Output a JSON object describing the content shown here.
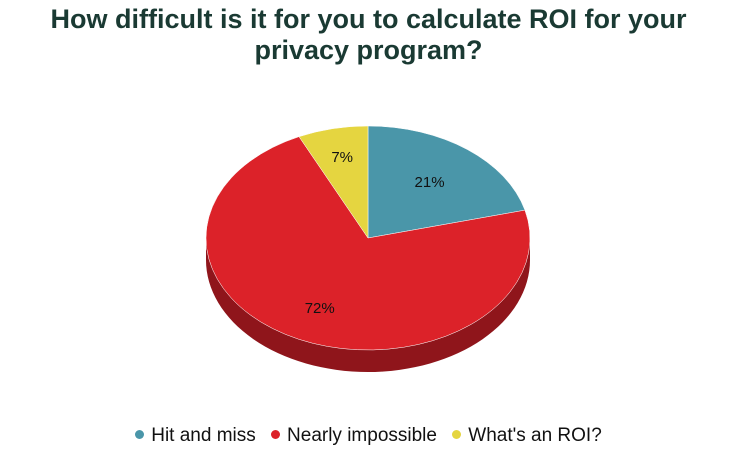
{
  "chart_data": {
    "type": "pie",
    "title": "How difficult is it for you to calculate ROI for your privacy program?",
    "slices": [
      {
        "label": "Hit and miss",
        "value": 21,
        "display": "21%",
        "color": "#4a96a9",
        "side": "#2e6b7b"
      },
      {
        "label": "Nearly impossible",
        "value": 72,
        "display": "72%",
        "color": "#dc2229",
        "side": "#8f151b"
      },
      {
        "label": "What's an ROI?",
        "value": 7,
        "display": "7%",
        "color": "#e5d540",
        "side": "#a89a22"
      }
    ],
    "legend_position": "bottom",
    "style": "3d"
  }
}
